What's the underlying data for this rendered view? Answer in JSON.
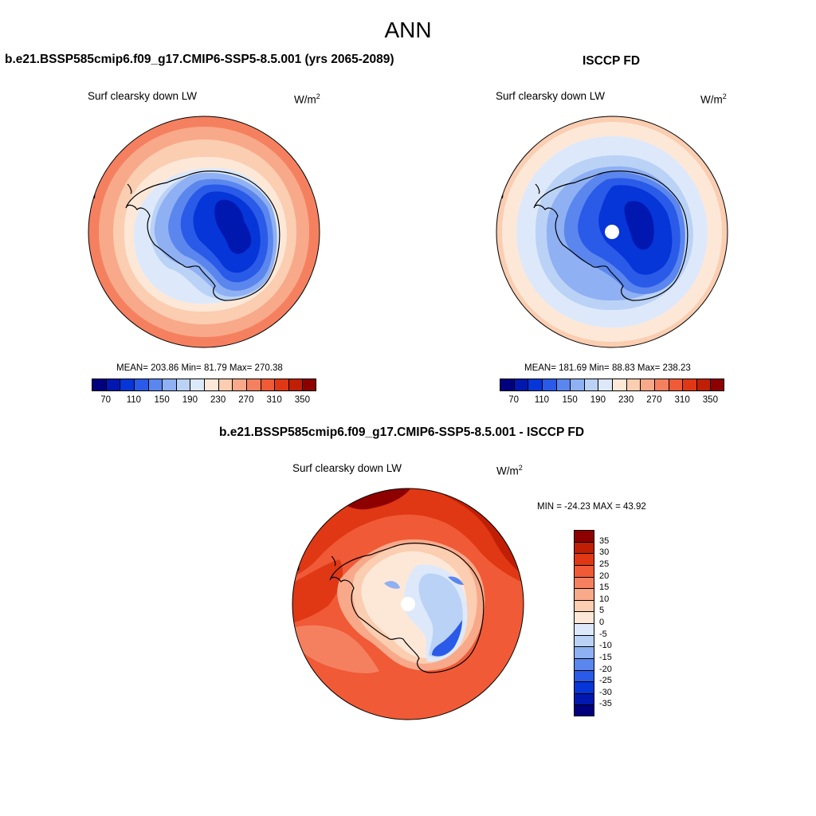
{
  "figure": {
    "title": "ANN"
  },
  "panels": {
    "model": {
      "title": "b.e21.BSSP585cmip6.f09_g17.CMIP6-SSP5-8.5.001 (yrs 2065-2089)",
      "variable": "Surf clearsky down LW",
      "units": "W/m",
      "units_exp": "2",
      "stats": "MEAN= 203.86  Min=  81.79  Max= 270.38"
    },
    "obs": {
      "title": "ISCCP FD",
      "variable": "Surf clearsky down LW",
      "units": "W/m",
      "units_exp": "2",
      "stats": "MEAN= 181.69  Min=  88.83  Max= 238.23"
    },
    "diff": {
      "title": "b.e21.BSSP585cmip6.f09_g17.CMIP6-SSP5-8.5.001 - ISCCP FD",
      "variable": "Surf clearsky down LW",
      "units": "W/m",
      "units_exp": "2",
      "stats": "MIN = -24.23 MAX =  43.92"
    }
  },
  "colorbar_abs": {
    "colors": [
      "#00007f",
      "#0018b0",
      "#0635d8",
      "#2a5ae8",
      "#5a86ee",
      "#8fb0f2",
      "#bad2f6",
      "#dde9fa",
      "#fde8d8",
      "#fbcdb1",
      "#f8a98a",
      "#f5805f",
      "#f05a36",
      "#e03814",
      "#c01f05",
      "#8e0000"
    ],
    "labels": [
      "70",
      "110",
      "150",
      "190",
      "230",
      "270",
      "310",
      "350"
    ]
  },
  "colorbar_diff": {
    "colors": [
      "#8e0000",
      "#c01f05",
      "#e03814",
      "#f05a36",
      "#f5805f",
      "#f8a98a",
      "#fbcdb1",
      "#fde8d8",
      "#dde9fa",
      "#bad2f6",
      "#8fb0f2",
      "#5a86ee",
      "#2a5ae8",
      "#0635d8",
      "#0018b0",
      "#00007f"
    ],
    "labels": [
      "35",
      "30",
      "25",
      "20",
      "15",
      "10",
      "5",
      "0",
      "-5",
      "-10",
      "-15",
      "-20",
      "-25",
      "-30",
      "-35"
    ]
  }
}
